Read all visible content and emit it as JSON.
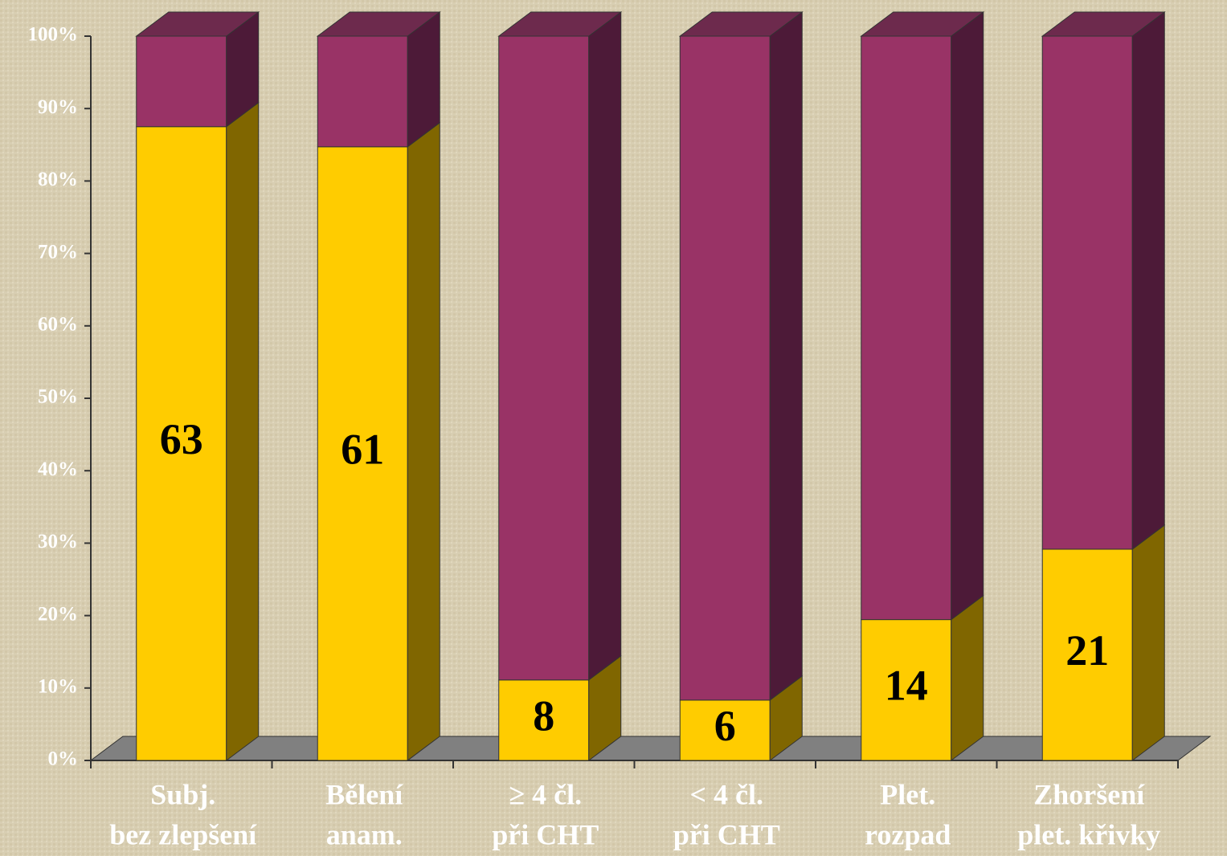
{
  "chart_data": {
    "type": "bar",
    "stacking": "percent",
    "categories": [
      [
        "Subj.",
        "bez zlepšení"
      ],
      [
        "Bělení",
        "anam."
      ],
      [
        "≥ 4 čl.",
        "při CHT"
      ],
      [
        "< 4 čl.",
        "při CHT"
      ],
      [
        "Plet.",
        "rozpad"
      ],
      [
        "Zhoršení",
        "plet. křivky"
      ]
    ],
    "series": [
      {
        "color": "#ffcc00",
        "side_color": "#806600",
        "values": [
          63,
          61,
          8,
          6,
          14,
          21
        ],
        "value_labels": [
          "63",
          "61",
          "8",
          "6",
          "14",
          "21"
        ]
      },
      {
        "color": "#993366",
        "side_color": "#4d1a38",
        "values": [
          9,
          11,
          64,
          66,
          58,
          51
        ]
      }
    ],
    "ylim": [
      0,
      100
    ],
    "yticks": [
      {
        "value": 0,
        "label": "0%"
      },
      {
        "value": 10,
        "label": "10%"
      },
      {
        "value": 20,
        "label": "20%"
      },
      {
        "value": 30,
        "label": "30%"
      },
      {
        "value": 40,
        "label": "40%"
      },
      {
        "value": 50,
        "label": "50%"
      },
      {
        "value": 60,
        "label": "60%"
      },
      {
        "value": 70,
        "label": "70%"
      },
      {
        "value": 80,
        "label": "80%"
      },
      {
        "value": 90,
        "label": "90%"
      },
      {
        "value": 100,
        "label": "100%"
      }
    ],
    "floor_color": "#808080"
  }
}
